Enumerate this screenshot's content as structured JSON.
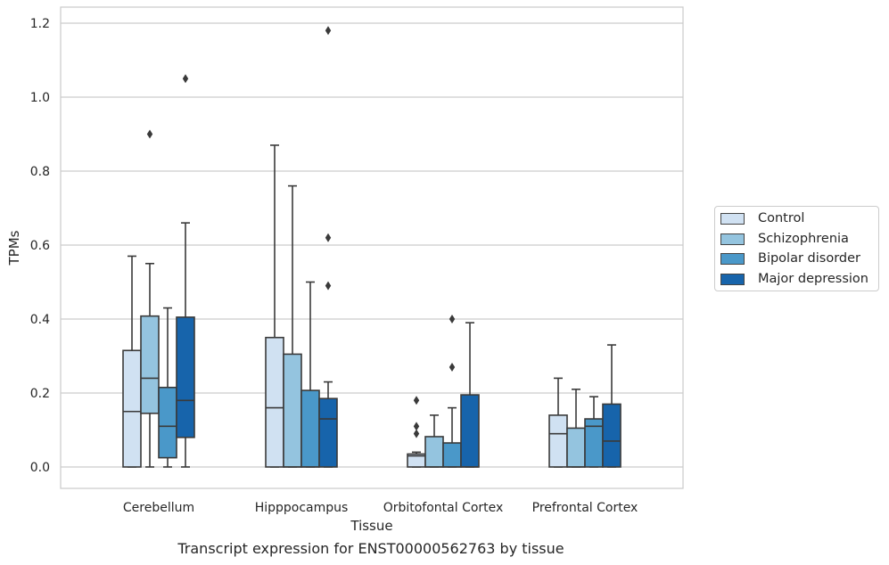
{
  "caption": "Transcript expression for ENST00000562763 by tissue",
  "chart_data": {
    "type": "box",
    "xlabel": "Tissue",
    "ylabel": "TPMs",
    "ylim": [
      -0.055,
      1.24
    ],
    "yticks": [
      0.0,
      0.2,
      0.4,
      0.6,
      0.8,
      1.0,
      1.2
    ],
    "ytick_labels": [
      "0.0",
      "0.2",
      "0.4",
      "0.6",
      "0.8",
      "1.0",
      "1.2"
    ],
    "grid": "horizontal",
    "legend_position": "right",
    "categories": [
      "Cerebellum",
      "Hipppocampus",
      "Orbitofontal Cortex",
      "Prefrontal Cortex"
    ],
    "series": [
      {
        "name": "Control",
        "color": "#d0e1f2",
        "boxes": [
          {
            "whislo": 0.0,
            "q1": 0.0,
            "med": 0.15,
            "q3": 0.315,
            "whishi": 0.57,
            "fliers": []
          },
          {
            "whislo": 0.0,
            "q1": 0.0,
            "med": 0.16,
            "q3": 0.35,
            "whishi": 0.87,
            "fliers": []
          },
          {
            "whislo": 0.0,
            "q1": 0.0,
            "med": 0.03,
            "q3": 0.035,
            "whishi": 0.04,
            "fliers": [
              0.09,
              0.11,
              0.18
            ]
          },
          {
            "whislo": 0.0,
            "q1": 0.0,
            "med": 0.09,
            "q3": 0.14,
            "whishi": 0.24,
            "fliers": []
          }
        ]
      },
      {
        "name": "Schizophrenia",
        "color": "#94c4df",
        "boxes": [
          {
            "whislo": 0.0,
            "q1": 0.145,
            "med": 0.24,
            "q3": 0.408,
            "whishi": 0.55,
            "fliers": [
              0.9
            ]
          },
          {
            "whislo": 0.0,
            "q1": 0.0,
            "med": 0.0,
            "q3": 0.305,
            "whishi": 0.76,
            "fliers": []
          },
          {
            "whislo": 0.0,
            "q1": 0.0,
            "med": 0.0,
            "q3": 0.082,
            "whishi": 0.14,
            "fliers": []
          },
          {
            "whislo": 0.0,
            "q1": 0.0,
            "med": 0.0,
            "q3": 0.105,
            "whishi": 0.21,
            "fliers": []
          }
        ]
      },
      {
        "name": "Bipolar disorder",
        "color": "#4a98c9",
        "boxes": [
          {
            "whislo": 0.0,
            "q1": 0.025,
            "med": 0.11,
            "q3": 0.215,
            "whishi": 0.43,
            "fliers": []
          },
          {
            "whislo": 0.0,
            "q1": 0.0,
            "med": 0.0,
            "q3": 0.207,
            "whishi": 0.5,
            "fliers": []
          },
          {
            "whislo": 0.0,
            "q1": 0.0,
            "med": 0.0,
            "q3": 0.065,
            "whishi": 0.16,
            "fliers": [
              0.27,
              0.4
            ]
          },
          {
            "whislo": 0.0,
            "q1": 0.0,
            "med": 0.11,
            "q3": 0.13,
            "whishi": 0.19,
            "fliers": []
          }
        ]
      },
      {
        "name": "Major depression",
        "color": "#1764ab",
        "boxes": [
          {
            "whislo": 0.0,
            "q1": 0.08,
            "med": 0.18,
            "q3": 0.405,
            "whishi": 0.66,
            "fliers": [
              1.05
            ]
          },
          {
            "whislo": 0.0,
            "q1": 0.0,
            "med": 0.13,
            "q3": 0.185,
            "whishi": 0.23,
            "fliers": [
              0.49,
              0.62,
              1.18
            ]
          },
          {
            "whislo": 0.0,
            "q1": 0.0,
            "med": 0.0,
            "q3": 0.195,
            "whishi": 0.39,
            "fliers": []
          },
          {
            "whislo": 0.0,
            "q1": 0.0,
            "med": 0.07,
            "q3": 0.17,
            "whishi": 0.33,
            "fliers": []
          }
        ]
      }
    ]
  }
}
